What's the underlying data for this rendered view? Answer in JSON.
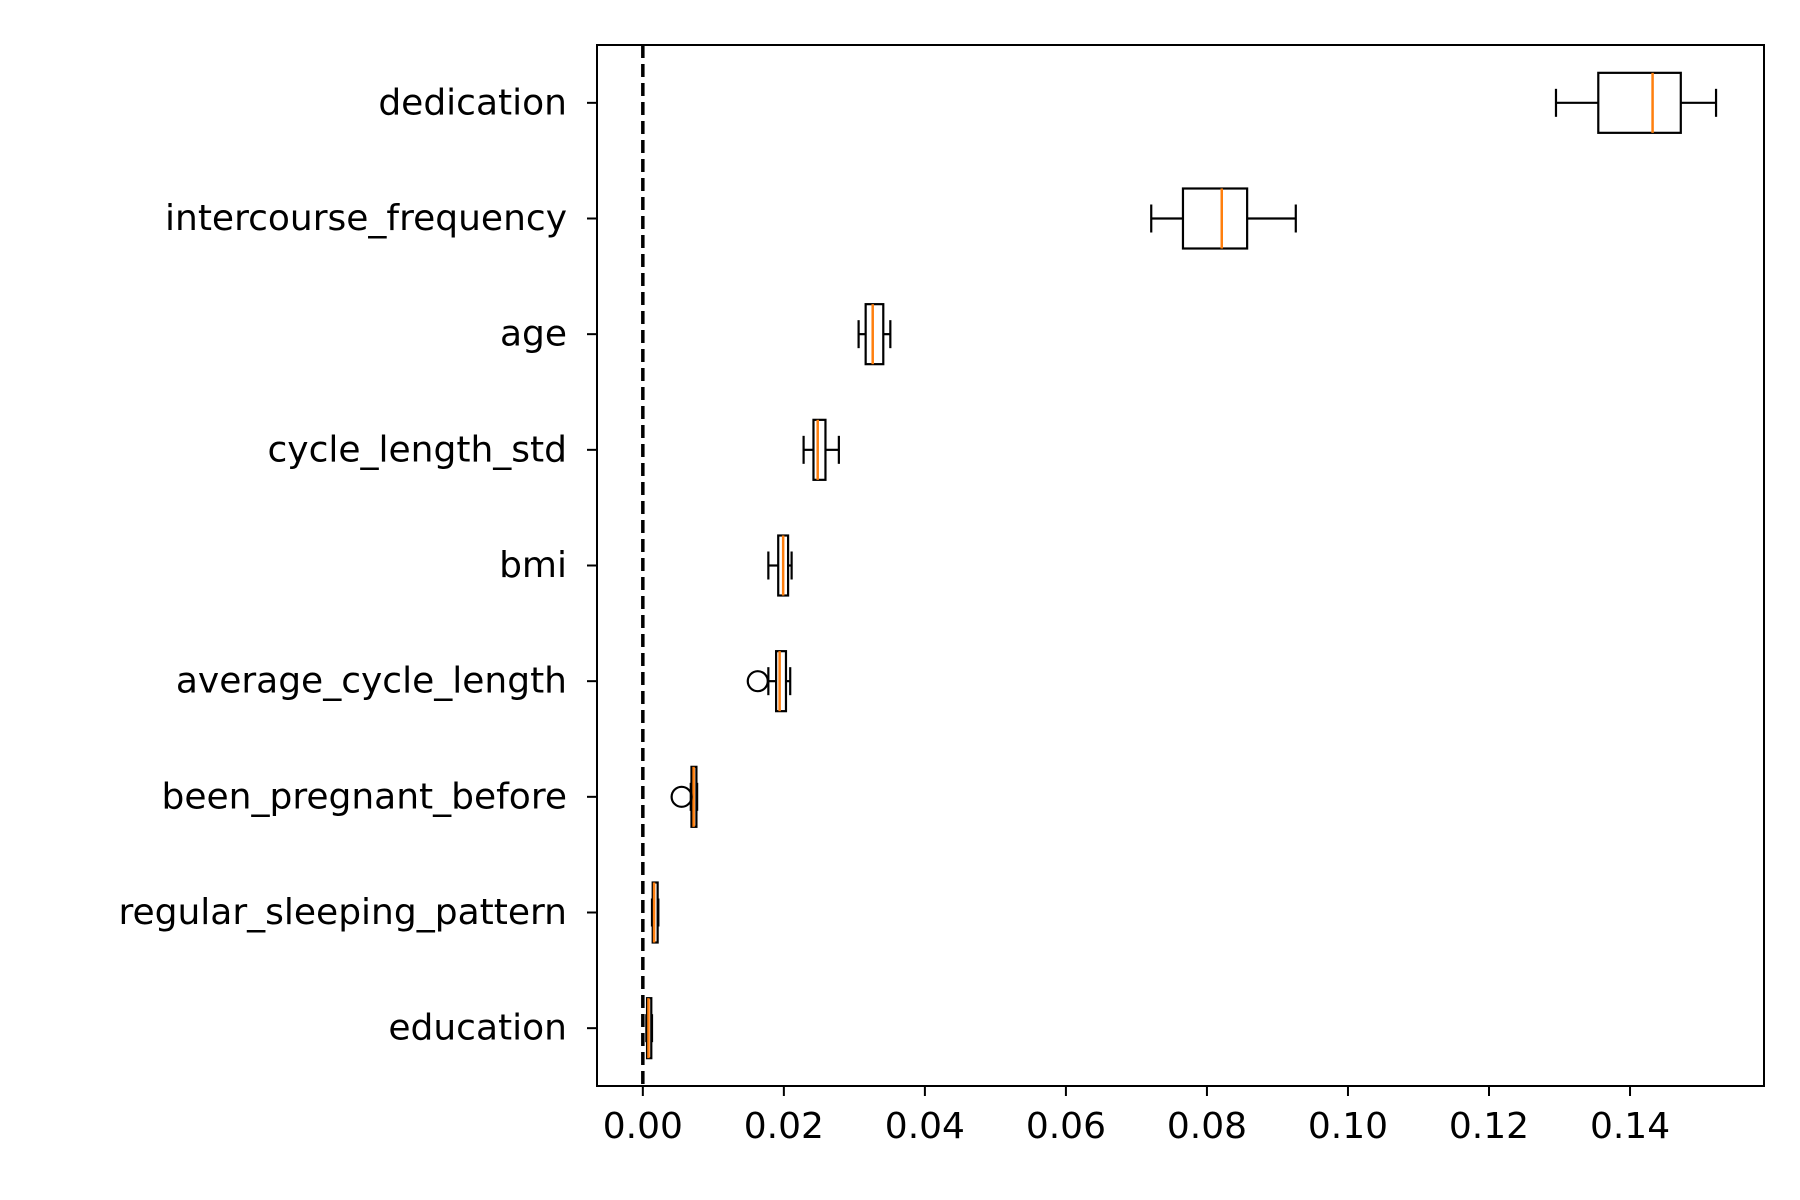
{
  "chart_data": {
    "type": "box",
    "orientation": "horizontal",
    "title": "",
    "xlabel": "",
    "ylabel": "",
    "xlim": [
      -0.0065,
      0.159
    ],
    "x_ticks": [
      0.0,
      0.02,
      0.04,
      0.06,
      0.08,
      0.1,
      0.12,
      0.14
    ],
    "x_tick_labels": [
      "0.00",
      "0.02",
      "0.04",
      "0.06",
      "0.08",
      "0.10",
      "0.12",
      "0.14"
    ],
    "reference_line": {
      "x": 0.0,
      "style": "dashed",
      "color": "#000000"
    },
    "grid": false,
    "box_color": "#000000",
    "median_color": "#ff7f0e",
    "categories": [
      "dedication",
      "intercourse_frequency",
      "age",
      "cycle_length_std",
      "bmi",
      "average_cycle_length",
      "been_pregnant_before",
      "regular_sleeping_pattern",
      "education"
    ],
    "boxes": [
      {
        "label": "dedication",
        "whisker_low": 0.1295,
        "q1": 0.1355,
        "median": 0.1432,
        "q3": 0.1472,
        "whisker_high": 0.1522,
        "outliers": []
      },
      {
        "label": "intercourse_frequency",
        "whisker_low": 0.0721,
        "q1": 0.0766,
        "median": 0.0821,
        "q3": 0.0857,
        "whisker_high": 0.0926,
        "outliers": []
      },
      {
        "label": "age",
        "whisker_low": 0.0306,
        "q1": 0.0316,
        "median": 0.0326,
        "q3": 0.0341,
        "whisker_high": 0.0351,
        "outliers": []
      },
      {
        "label": "cycle_length_std",
        "whisker_low": 0.0228,
        "q1": 0.0242,
        "median": 0.0248,
        "q3": 0.0259,
        "whisker_high": 0.0278,
        "outliers": []
      },
      {
        "label": "bmi",
        "whisker_low": 0.0178,
        "q1": 0.0192,
        "median": 0.0199,
        "q3": 0.0206,
        "whisker_high": 0.0211,
        "outliers": []
      },
      {
        "label": "average_cycle_length",
        "whisker_low": 0.0178,
        "q1": 0.0189,
        "median": 0.0194,
        "q3": 0.0203,
        "whisker_high": 0.0209,
        "outliers": [
          0.0163
        ]
      },
      {
        "label": "been_pregnant_before",
        "whisker_low": 0.0068,
        "q1": 0.0069,
        "median": 0.0072,
        "q3": 0.0076,
        "whisker_high": 0.0077,
        "outliers": [
          0.0055
        ]
      },
      {
        "label": "regular_sleeping_pattern",
        "whisker_low": 0.0013,
        "q1": 0.0014,
        "median": 0.0016,
        "q3": 0.0021,
        "whisker_high": 0.0022,
        "outliers": []
      },
      {
        "label": "education",
        "whisker_low": 0.0005,
        "q1": 0.0006,
        "median": 0.0008,
        "q3": 0.0012,
        "whisker_high": 0.0013,
        "outliers": []
      }
    ]
  }
}
